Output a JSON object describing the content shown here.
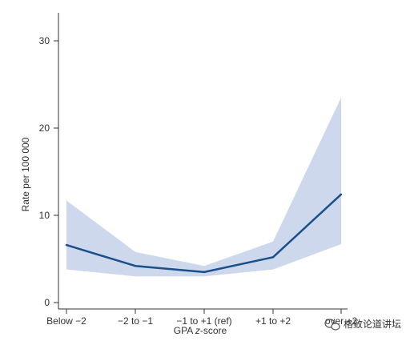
{
  "chart_data": {
    "type": "line",
    "xlabel_prefix": "GPA ",
    "xlabel_italic": "z",
    "xlabel_suffix": "-score",
    "ylabel": "Rate per 100 000",
    "categories": [
      "Below −2",
      "−2 to −1",
      "−1 to +1 (ref)",
      "+1 to +2",
      "over +2"
    ],
    "series": [
      {
        "values": [
          6.6,
          4.2,
          3.5,
          5.2,
          12.4
        ],
        "lower": [
          3.8,
          3.0,
          3.0,
          3.8,
          6.7
        ],
        "upper": [
          11.7,
          5.8,
          4.2,
          7.0,
          23.5
        ]
      }
    ],
    "ylim": [
      0,
      31
    ],
    "yticks": [
      0,
      10,
      20,
      30
    ],
    "grid": false,
    "colors": {
      "line": "#1b4f8a",
      "band": "#cdd8ec",
      "axis": "#333333"
    }
  },
  "watermark": {
    "text": "格致论道讲坛",
    "icon": "wechat-icon"
  }
}
